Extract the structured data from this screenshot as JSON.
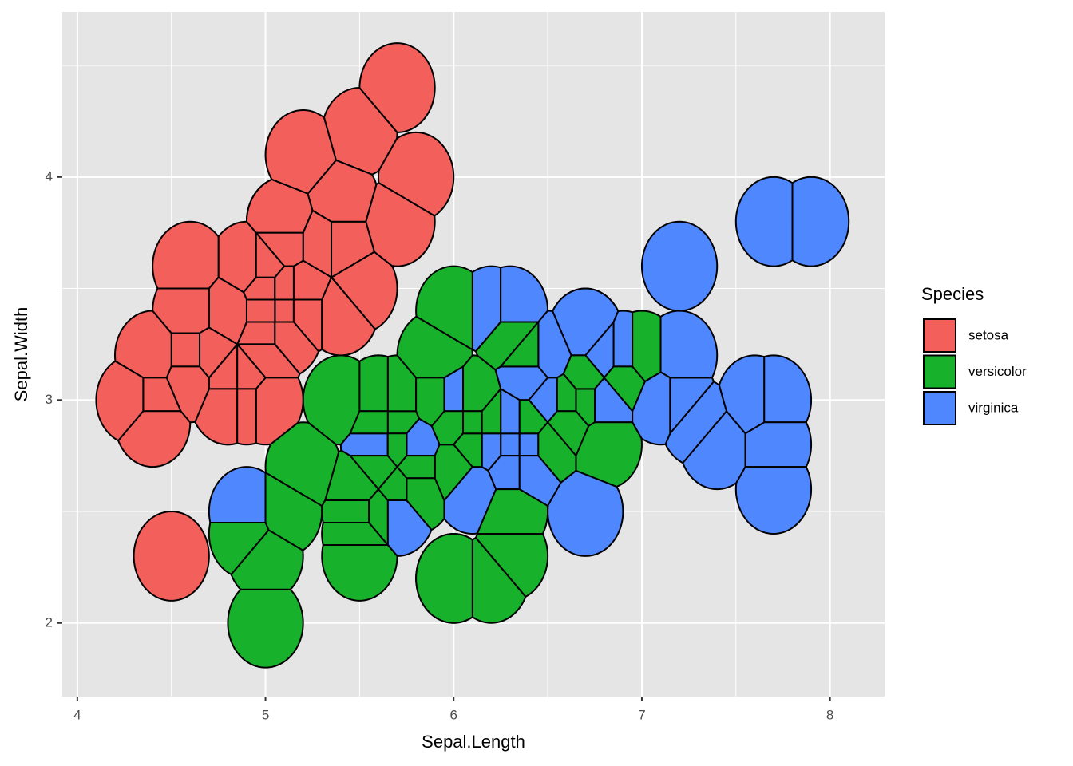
{
  "chart_data": {
    "type": "voronoi",
    "x_label": "Sepal.Length",
    "y_label": "Sepal.Width",
    "xlim": [
      3.92,
      8.29
    ],
    "ylim": [
      1.67,
      4.74
    ],
    "xticks": [
      4,
      5,
      6,
      7,
      8
    ],
    "yticks": [
      2,
      3,
      4
    ],
    "grid": true,
    "minor_grid": true,
    "max_radius": 0.2,
    "legend_title": "Species",
    "legend_position": "right",
    "series": [
      {
        "name": "setosa",
        "color": "#F35F5B",
        "x": [
          5.1,
          4.9,
          4.7,
          4.6,
          5.0,
          5.4,
          4.6,
          5.0,
          4.4,
          4.9,
          5.4,
          4.8,
          4.8,
          4.3,
          5.8,
          5.7,
          5.4,
          5.1,
          5.7,
          5.1,
          5.4,
          5.1,
          4.6,
          5.1,
          4.8,
          5.0,
          5.0,
          5.2,
          5.2,
          4.7,
          4.8,
          5.4,
          5.2,
          5.5,
          4.9,
          5.0,
          5.5,
          4.9,
          4.4,
          5.1,
          5.0,
          4.5,
          4.4,
          5.0,
          5.1,
          4.8,
          5.1,
          4.6,
          5.3,
          5.0
        ],
        "values": [
          3.5,
          3.0,
          3.2,
          3.1,
          3.6,
          3.9,
          3.4,
          3.4,
          2.9,
          3.1,
          3.7,
          3.4,
          3.0,
          3.0,
          4.0,
          4.4,
          3.9,
          3.5,
          3.8,
          3.8,
          3.4,
          3.7,
          3.6,
          3.3,
          3.4,
          3.0,
          3.4,
          3.5,
          3.4,
          3.2,
          3.1,
          3.4,
          4.1,
          4.2,
          3.1,
          3.2,
          3.5,
          3.6,
          3.0,
          3.4,
          3.5,
          2.3,
          3.2,
          3.5,
          3.8,
          3.0,
          3.8,
          3.2,
          3.7,
          3.3
        ]
      },
      {
        "name": "versicolor",
        "color": "#18B12C",
        "x": [
          7.0,
          6.4,
          6.9,
          5.5,
          6.5,
          5.7,
          6.3,
          4.9,
          6.6,
          5.2,
          5.0,
          5.9,
          6.0,
          6.1,
          5.6,
          6.7,
          5.6,
          5.8,
          6.2,
          5.6,
          5.9,
          6.1,
          6.3,
          6.1,
          6.4,
          6.6,
          6.8,
          6.7,
          6.0,
          5.7,
          5.5,
          5.5,
          5.8,
          6.0,
          5.4,
          6.0,
          6.7,
          6.3,
          5.6,
          5.5,
          5.5,
          6.1,
          5.8,
          5.0,
          5.6,
          5.7,
          5.7,
          6.2,
          5.1,
          5.7
        ],
        "values": [
          3.2,
          3.2,
          3.1,
          2.3,
          2.8,
          2.8,
          3.3,
          2.4,
          2.9,
          2.7,
          2.0,
          3.0,
          2.2,
          2.9,
          2.9,
          3.1,
          3.0,
          2.7,
          2.2,
          2.5,
          3.2,
          2.8,
          2.5,
          2.8,
          2.9,
          3.0,
          2.8,
          3.0,
          2.9,
          2.6,
          2.4,
          2.4,
          2.7,
          2.7,
          3.0,
          3.4,
          3.1,
          2.3,
          3.0,
          2.5,
          2.6,
          3.0,
          2.6,
          2.3,
          2.7,
          3.0,
          2.9,
          2.9,
          2.5,
          2.8
        ]
      },
      {
        "name": "virginica",
        "color": "#4F87FF",
        "x": [
          6.3,
          5.8,
          7.1,
          6.3,
          6.5,
          7.6,
          4.9,
          7.3,
          6.7,
          7.2,
          6.5,
          6.4,
          6.8,
          5.7,
          5.8,
          6.4,
          6.5,
          7.7,
          7.7,
          6.0,
          6.9,
          5.6,
          7.7,
          6.3,
          6.7,
          7.2,
          6.2,
          6.1,
          6.4,
          7.2,
          7.4,
          7.9,
          6.4,
          6.3,
          6.1,
          7.7,
          6.3,
          6.4,
          6.0,
          6.9,
          6.7,
          6.9,
          5.8,
          6.8,
          6.7,
          6.7,
          6.3,
          6.5,
          6.2,
          5.9
        ],
        "values": [
          3.3,
          2.7,
          3.0,
          2.9,
          3.0,
          3.0,
          2.5,
          2.9,
          2.5,
          3.6,
          3.2,
          2.7,
          3.0,
          2.5,
          2.8,
          3.2,
          3.0,
          3.8,
          2.6,
          2.2,
          3.2,
          2.8,
          2.8,
          2.7,
          3.3,
          3.2,
          2.8,
          3.0,
          2.8,
          3.0,
          2.8,
          3.8,
          2.8,
          2.8,
          2.6,
          3.0,
          3.4,
          3.1,
          3.0,
          3.1,
          3.1,
          3.1,
          2.7,
          3.2,
          3.3,
          3.0,
          2.5,
          3.0,
          3.4,
          3.0
        ]
      }
    ]
  }
}
